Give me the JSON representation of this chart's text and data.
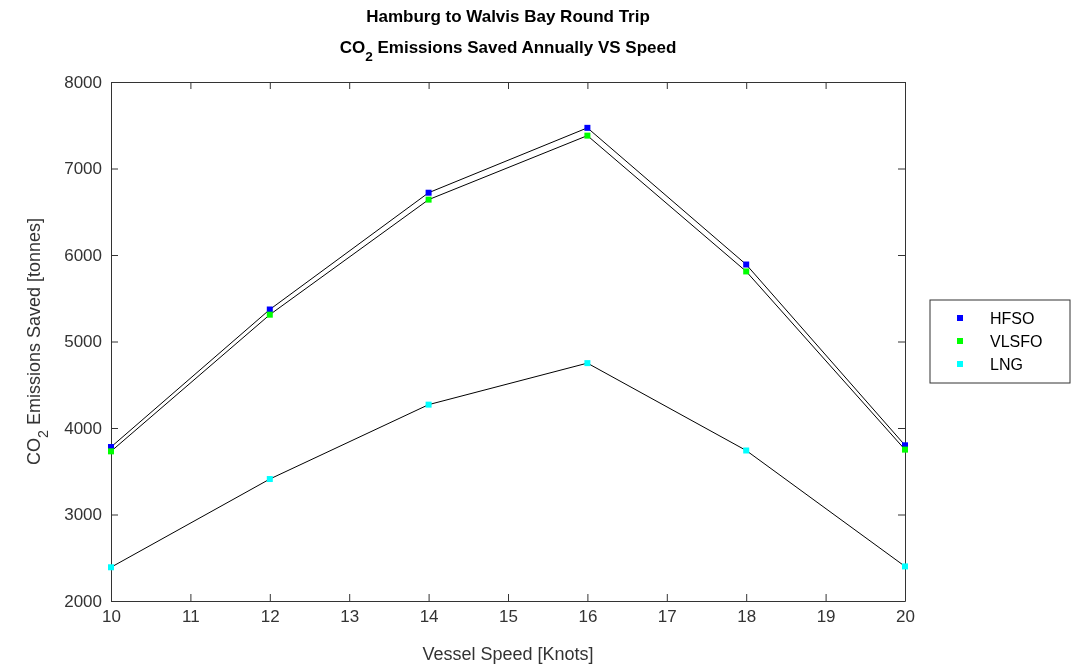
{
  "chart_data": {
    "type": "line",
    "title": "Hamburg to Walvis Bay Round Trip",
    "subtitle": "CO$_{2}$ Emissions Saved Annually VS Speed",
    "xlabel": "Vessel Speed [Knots]",
    "ylabel": "CO$_{2}$ Emissions Saved [tonnes]",
    "x": [
      10,
      12,
      14,
      16,
      18,
      20
    ],
    "series": [
      {
        "name": "HFSO",
        "color": "#0000ff",
        "values": [
          3780,
          5370,
          6720,
          7470,
          5890,
          3800
        ]
      },
      {
        "name": "VLSFO",
        "color": "#00ff00",
        "values": [
          3730,
          5310,
          6640,
          7380,
          5810,
          3750
        ]
      },
      {
        "name": "LNG",
        "color": "#00ffff",
        "values": [
          2390,
          3410,
          4270,
          4750,
          3740,
          2400
        ]
      }
    ],
    "xlim": [
      10,
      20
    ],
    "xticks": [
      10,
      11,
      12,
      13,
      14,
      15,
      16,
      17,
      18,
      19,
      20
    ],
    "ylim": [
      2000,
      8000
    ],
    "yticks": [
      2000,
      3000,
      4000,
      5000,
      6000,
      7000,
      8000
    ],
    "marker": "square",
    "line_style": "solid",
    "legend": "right"
  }
}
